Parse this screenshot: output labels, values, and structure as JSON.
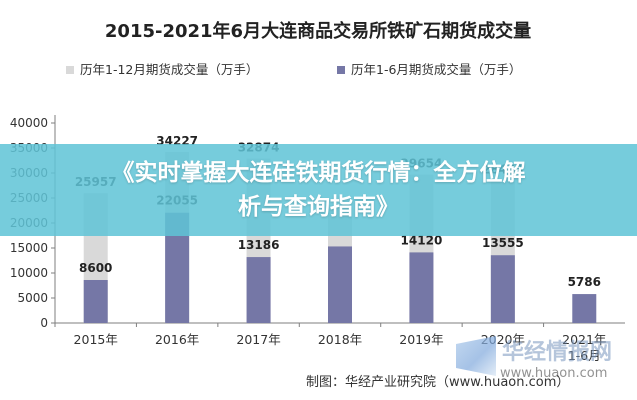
{
  "chart_data": {
    "type": "bar",
    "title": "2015-2021年6月大连商品交易所铁矿石期货成交量",
    "categories": [
      "2015年",
      "2016年",
      "2017年",
      "2018年",
      "2019年",
      "2020年",
      "2021年 1-6月"
    ],
    "series": [
      {
        "name": "历年1-12月期货成交量（万手）",
        "color": "#d9d9d9",
        "values": [
          25957,
          34227,
          32874,
          23630,
          29654,
          28463,
          null
        ]
      },
      {
        "name": "历年1-6月期货成交量（万手）",
        "color": "#7577a6",
        "values": [
          8600,
          22055,
          13186,
          15310,
          14120,
          13555,
          5786
        ]
      }
    ],
    "data_labels": {
      "annual": [
        "25957",
        "34227",
        "32874",
        "",
        "29654",
        "28463",
        ""
      ],
      "half": [
        "8600",
        "22055",
        "13186",
        "",
        "14120",
        "13555",
        "5786"
      ]
    },
    "yticks": [
      "0",
      "5000",
      "10000",
      "15000",
      "20000",
      "25000",
      "30000",
      "35000",
      "40000"
    ],
    "ylim": [
      0,
      40000
    ],
    "legend_position": "top",
    "grid": false
  },
  "banner": {
    "line1": "《实时掌握大连硅铁期货行情：全方位解",
    "line2": "析与查询指南》"
  },
  "source_note": "制图：华经产业研究院（www.huaon.com）",
  "watermark": {
    "name": "华经情报网",
    "url": "www.huaon.com"
  },
  "colors": {
    "banner": "#60c4d6",
    "annual_bar": "#d9d9d9",
    "half_bar": "#7577a6"
  }
}
